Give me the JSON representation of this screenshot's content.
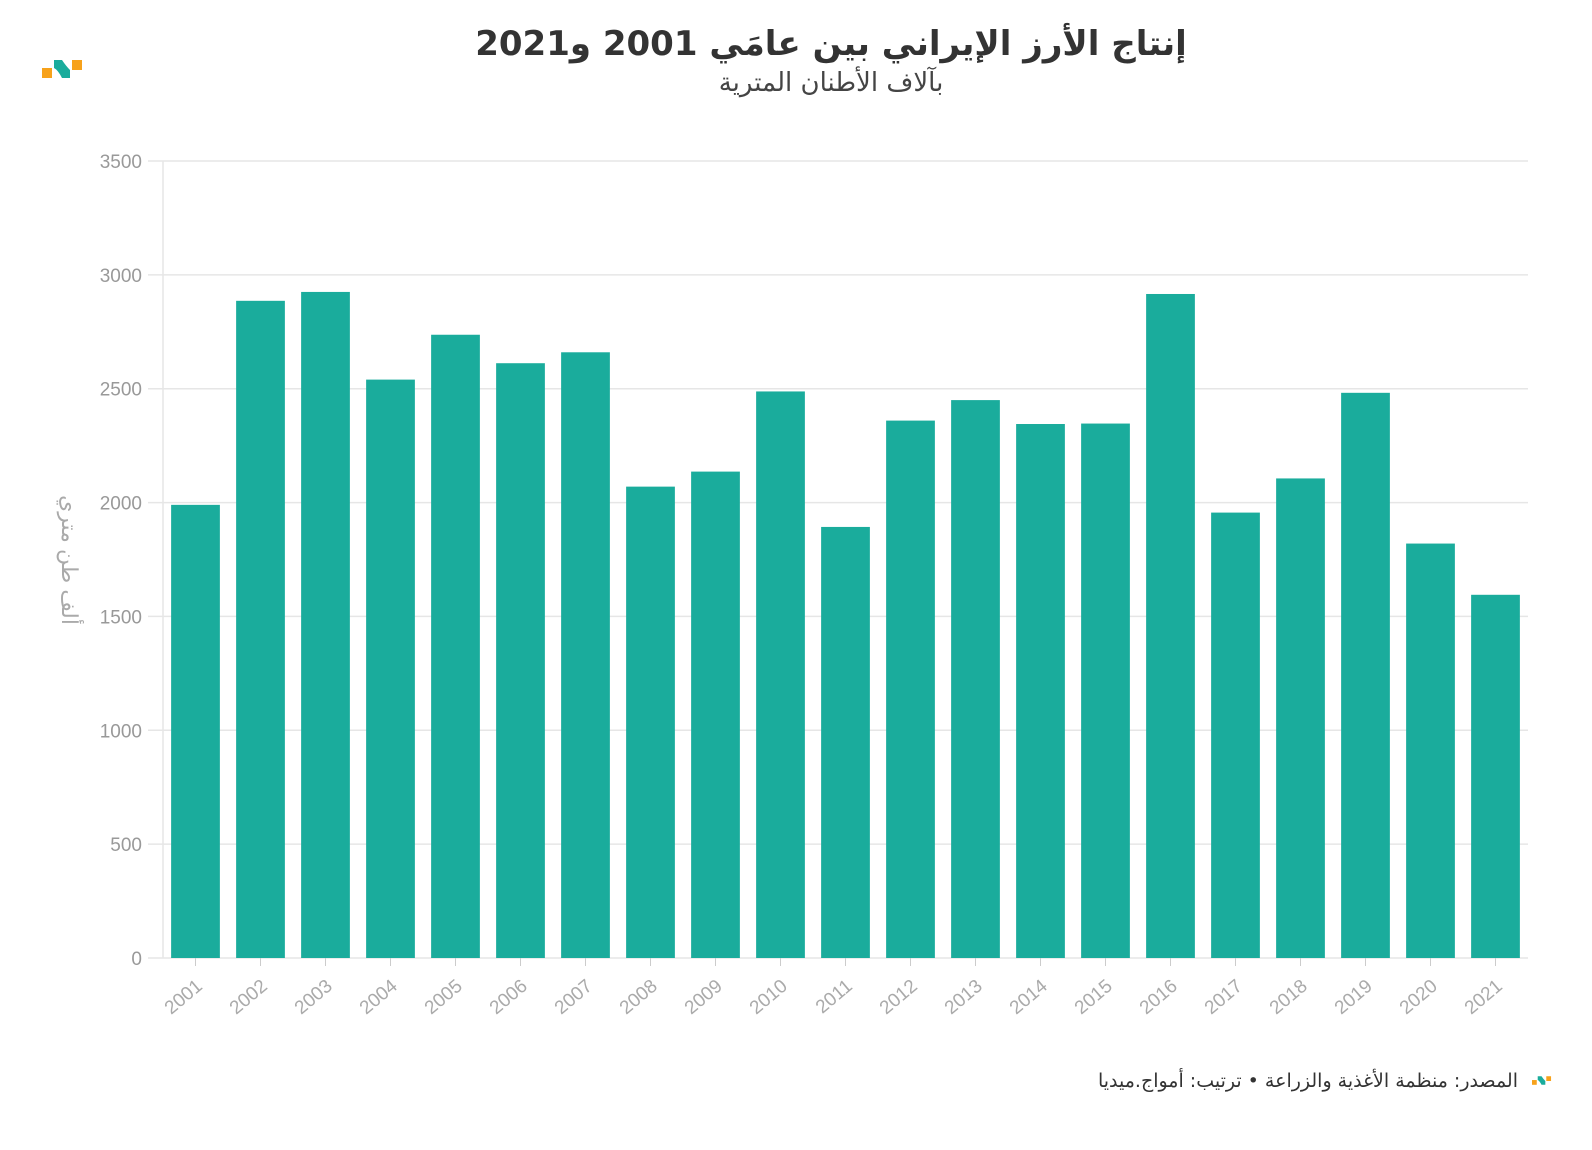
{
  "chart_data": {
    "type": "bar",
    "title": "إنتاج الأرز الإيراني بين عامَي 2001 و2021",
    "subtitle": "بآلاف الأطنان المترية",
    "xlabel": "",
    "ylabel": "ألف طن متري",
    "ylim": [
      0,
      3500
    ],
    "yticks": [
      0,
      500,
      1000,
      1500,
      2000,
      2500,
      3000,
      3500
    ],
    "grid": true,
    "categories": [
      "2001",
      "2002",
      "2003",
      "2004",
      "2005",
      "2006",
      "2007",
      "2008",
      "2009",
      "2010",
      "2011",
      "2012",
      "2013",
      "2014",
      "2015",
      "2016",
      "2017",
      "2018",
      "2019",
      "2020",
      "2021"
    ],
    "values": [
      1990,
      2886,
      2925,
      2540,
      2737,
      2612,
      2660,
      2070,
      2136,
      2488,
      1893,
      2360,
      2450,
      2345,
      2347,
      2916,
      1956,
      2106,
      2482,
      1820,
      1595
    ],
    "color": "#1aac9c"
  },
  "footer": {
    "source": "المصدر: منظمة الأغذية والزراعة • ترتيب: أمواج.ميديا"
  }
}
